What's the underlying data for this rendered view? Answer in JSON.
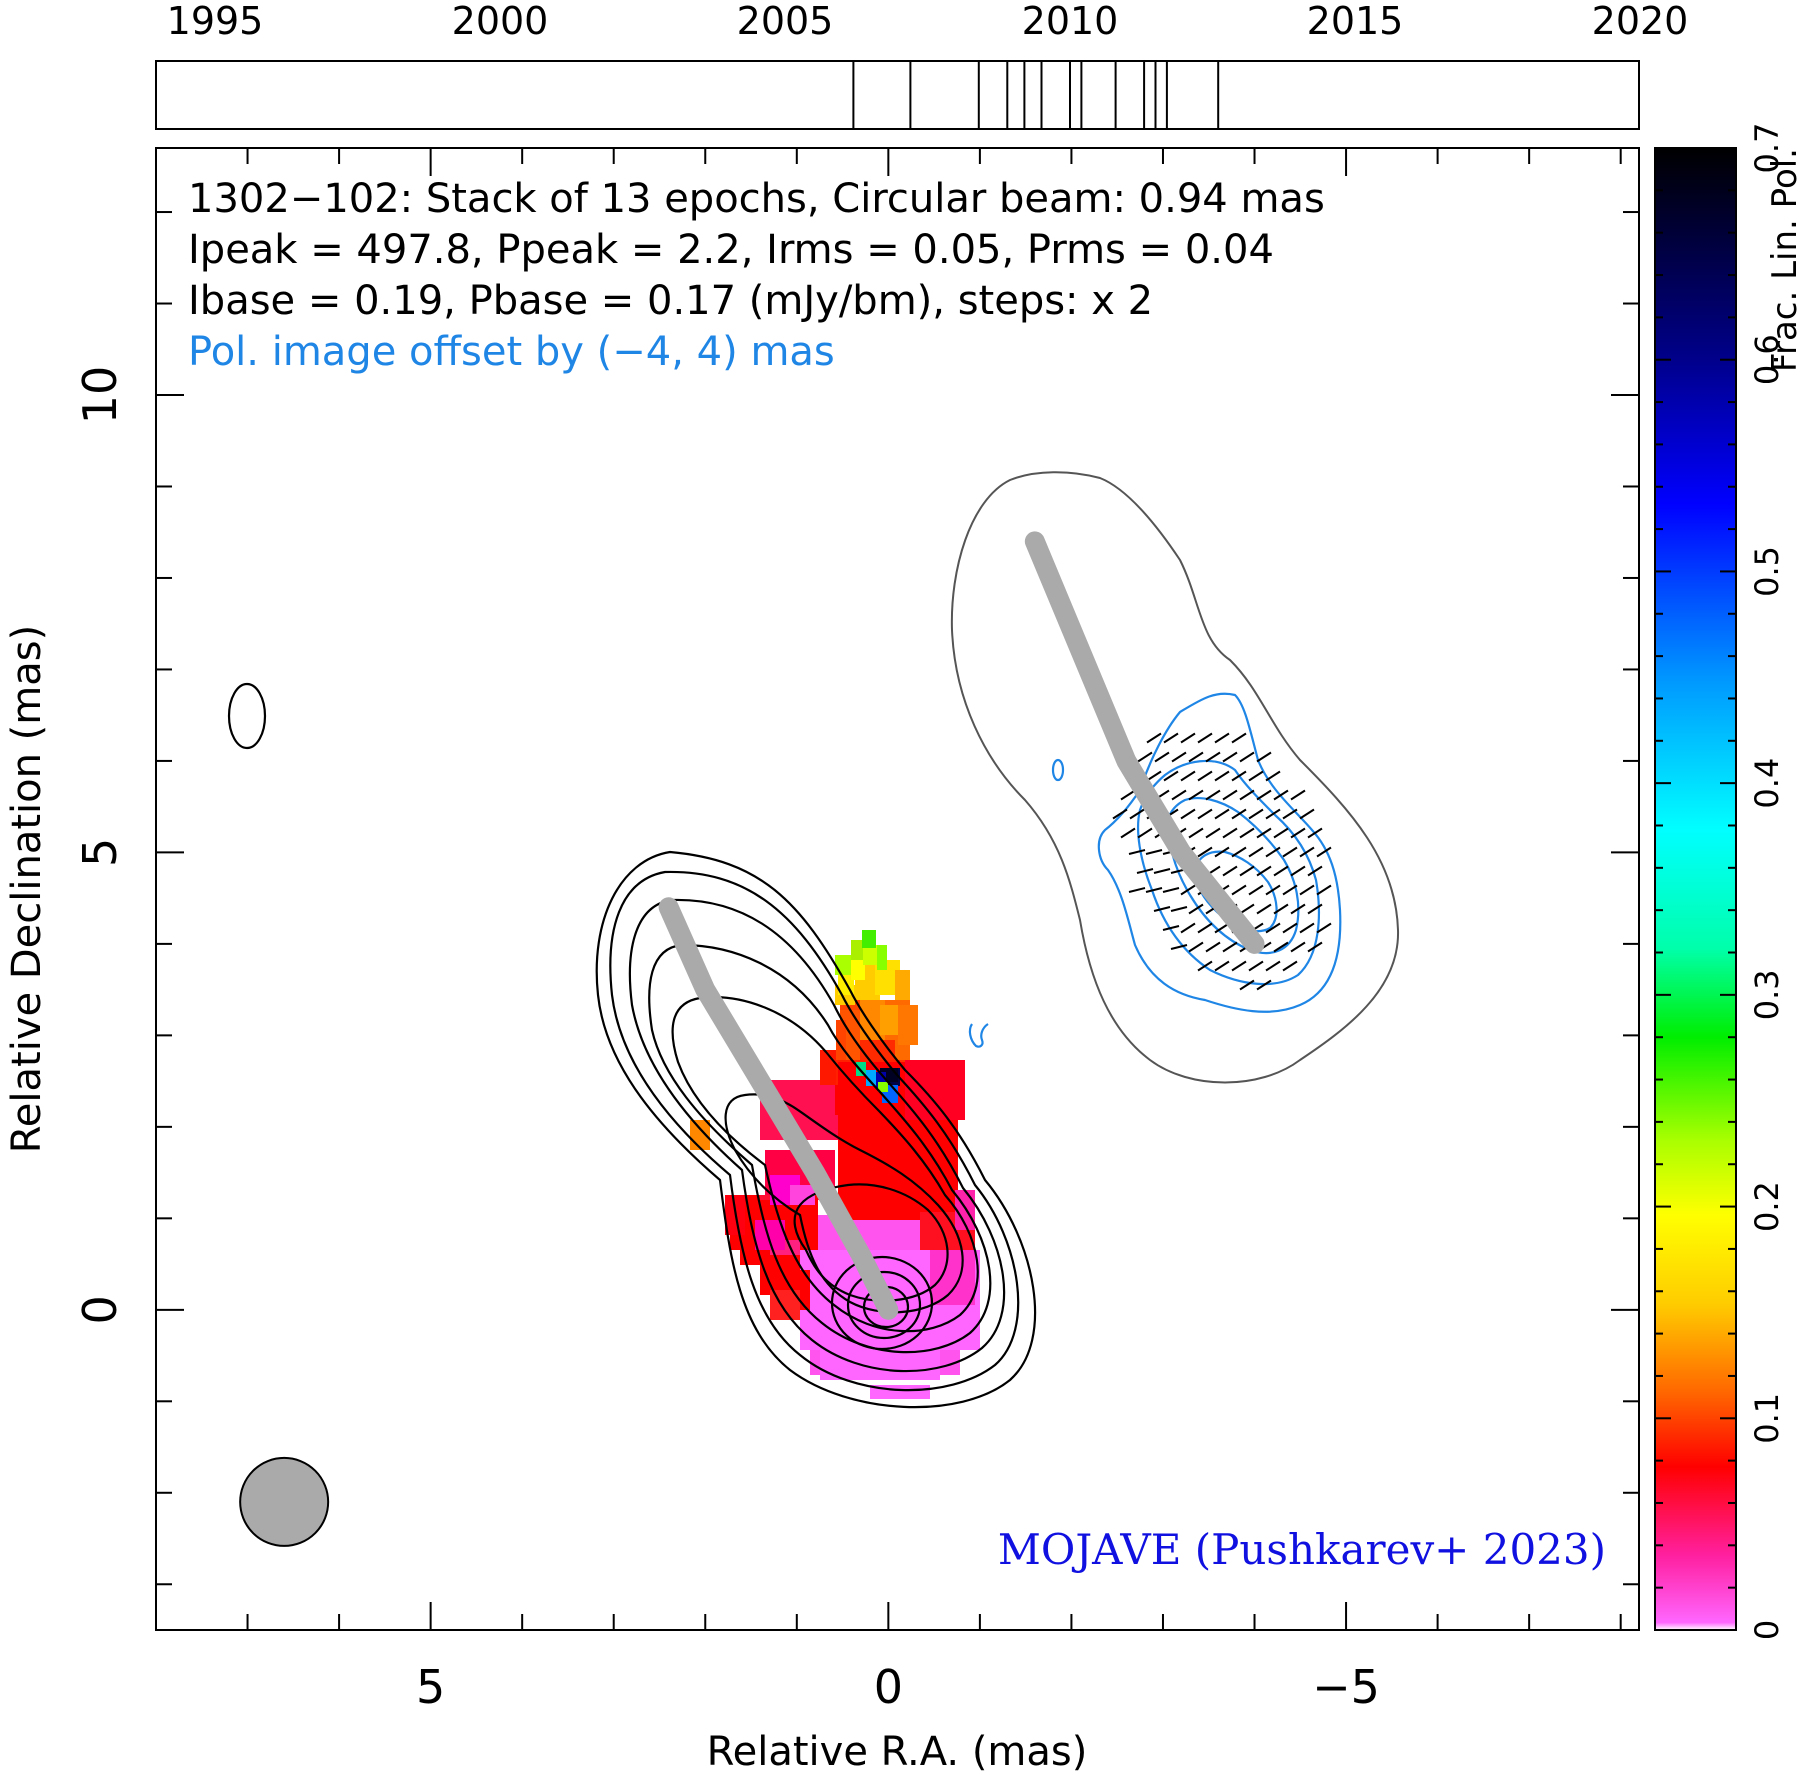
{
  "chart_data": {
    "type": "contour",
    "source": "1302-102",
    "header_lines": [
      "1302−102: Stack of 13 epochs, Circular beam: 0.94 mas",
      "Ipeak = 497.8, Ppeak = 2.2, Irms = 0.05, Prms = 0.04",
      "Ibase = 0.19, Pbase = 0.17 (mJy/bm), steps: x 2"
    ],
    "offset_note": "Pol. image offset by (−4, 4) mas",
    "credit": "MOJAVE (Pushkarev+ 2023)",
    "xlabel": "Relative R.A. (mas)",
    "ylabel": "Relative Declination (mas)",
    "xlim": [
      8,
      -8.2
    ],
    "ylim": [
      -3.5,
      12.7
    ],
    "x_ticks": [
      "5",
      "0",
      "−5"
    ],
    "x_tick_values": [
      5,
      0,
      -5
    ],
    "y_ticks": [
      "0",
      "5",
      "10"
    ],
    "y_tick_values": [
      0,
      5,
      10
    ],
    "colorbar": {
      "label": "Frac. Lin. Pol.",
      "range": [
        0,
        0.7
      ],
      "ticks": [
        "0",
        "0.1",
        "0.2",
        "0.3",
        "0.4",
        "0.5",
        "0.6",
        "0.7"
      ],
      "tick_values": [
        0,
        0.1,
        0.2,
        0.3,
        0.4,
        0.5,
        0.6,
        0.7
      ]
    },
    "epoch_timeline": {
      "range": [
        1995,
        2020
      ],
      "labels": [
        "1995",
        "2000",
        "2005",
        "2010",
        "2015",
        "2020"
      ],
      "label_values": [
        1995,
        2000,
        2005,
        2010,
        2015,
        2020
      ],
      "epochs": [
        2006.2,
        2007.2,
        2008.4,
        2008.9,
        2009.2,
        2009.5,
        2010.0,
        2010.2,
        2010.8,
        2011.3,
        2011.5,
        2011.7,
        2012.6
      ]
    },
    "beam": {
      "ra": 6.6,
      "dec": -2.1,
      "diameter_mas": 0.94
    },
    "ridge_line_stokes_i": [
      [
        2.4,
        4.4
      ],
      [
        2.0,
        3.5
      ],
      [
        1.4,
        2.5
      ],
      [
        0.8,
        1.5
      ],
      [
        0.3,
        0.6
      ],
      [
        0.0,
        0.0
      ]
    ],
    "ridge_line_pol": [
      [
        -1.6,
        8.4
      ],
      [
        -2.1,
        7.2
      ],
      [
        -2.6,
        6.0
      ],
      [
        -3.2,
        5.0
      ],
      [
        -4.0,
        4.0
      ]
    ]
  }
}
